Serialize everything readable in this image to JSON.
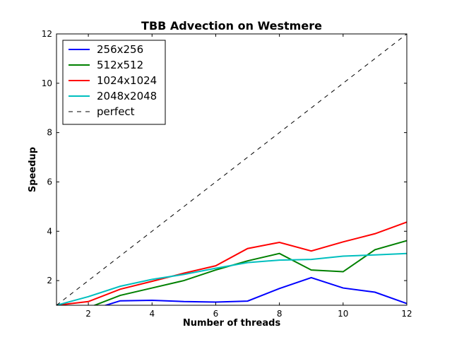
{
  "chart_data": {
    "type": "line",
    "title": "TBB Advection on Westmere",
    "xlabel": "Number of threads",
    "ylabel": "Speedup",
    "xlim": [
      1,
      12
    ],
    "ylim": [
      1,
      12
    ],
    "xticks": [
      2,
      4,
      6,
      8,
      10,
      12
    ],
    "yticks": [
      2,
      4,
      6,
      8,
      10,
      12
    ],
    "x": [
      1,
      2,
      3,
      4,
      5,
      6,
      7,
      8,
      9,
      10,
      11,
      12
    ],
    "legend_position": "top-left",
    "grid": false,
    "series": [
      {
        "name": "256x256",
        "color": "#0000ff",
        "style": "solid",
        "values": [
          0.45,
          0.78,
          1.18,
          1.2,
          1.15,
          1.13,
          1.17,
          1.68,
          2.12,
          1.7,
          1.53,
          1.07
        ]
      },
      {
        "name": "512x512",
        "color": "#008000",
        "style": "solid",
        "values": [
          0.62,
          0.9,
          1.4,
          1.7,
          2.0,
          2.43,
          2.8,
          3.1,
          2.43,
          2.36,
          3.25,
          3.62
        ]
      },
      {
        "name": "1024x1024",
        "color": "#ff0000",
        "style": "solid",
        "values": [
          1.0,
          1.15,
          1.65,
          1.97,
          2.3,
          2.6,
          3.3,
          3.55,
          3.2,
          3.57,
          3.9,
          4.37
        ]
      },
      {
        "name": "2048x2048",
        "color": "#00bfbf",
        "style": "solid",
        "values": [
          1.0,
          1.35,
          1.77,
          2.05,
          2.25,
          2.5,
          2.73,
          2.83,
          2.86,
          2.99,
          3.04,
          3.1
        ]
      },
      {
        "name": "perfect",
        "color": "#000000",
        "style": "dashed",
        "values": [
          1,
          2,
          3,
          4,
          5,
          6,
          7,
          8,
          9,
          10,
          11,
          12
        ]
      }
    ]
  }
}
